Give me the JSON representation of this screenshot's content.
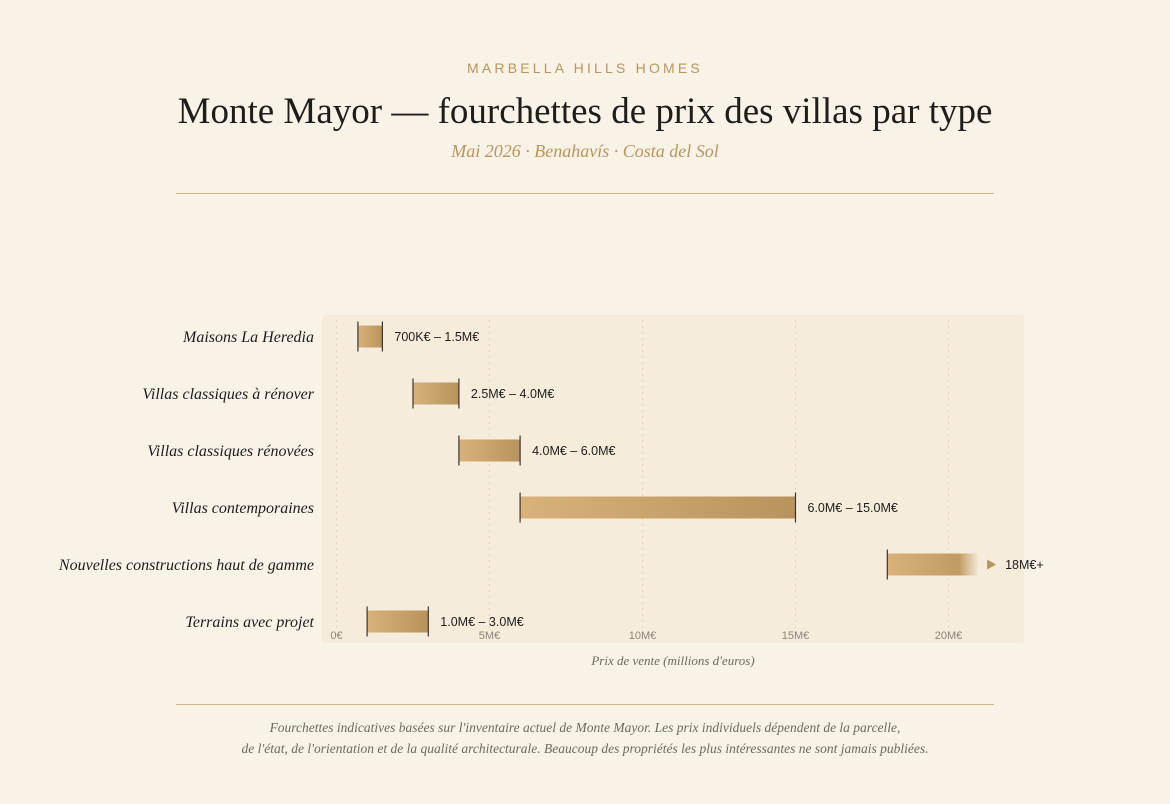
{
  "header": {
    "brand": "MARBELLA HILLS HOMES",
    "title": "Monte Mayor — fourchettes de prix des villas par type",
    "subtitle": "Mai 2026 · Benahavís · Costa del Sol"
  },
  "chart_data": {
    "type": "bar",
    "orientation": "horizontal-range",
    "categories": [
      "Maisons La Heredia",
      "Villas classiques à rénover",
      "Villas classiques rénovées",
      "Villas contemporaines",
      "Nouvelles constructions haut de gamme",
      "Terrains avec projet"
    ],
    "series": [
      {
        "ranges": [
          {
            "low": 0.7,
            "high": 1.5,
            "open_ended": false,
            "label": "700K€ – 1.5M€"
          },
          {
            "low": 2.5,
            "high": 4.0,
            "open_ended": false,
            "label": "2.5M€ – 4.0M€"
          },
          {
            "low": 4.0,
            "high": 6.0,
            "open_ended": false,
            "label": "4.0M€ – 6.0M€"
          },
          {
            "low": 6.0,
            "high": 15.0,
            "open_ended": false,
            "label": "6.0M€ – 15.0M€"
          },
          {
            "low": 18.0,
            "high": 21.0,
            "open_ended": true,
            "label": "18M€+"
          },
          {
            "low": 1.0,
            "high": 3.0,
            "open_ended": false,
            "label": "1.0M€ – 3.0M€"
          }
        ]
      }
    ],
    "xlabel": "Prix de vente (millions d'euros)",
    "ylabel": "",
    "xlim": [
      0,
      22
    ],
    "xticks": [
      0,
      5,
      10,
      15,
      20
    ],
    "xtick_labels": [
      "0€",
      "5M€",
      "10M€",
      "15M€",
      "20M€"
    ],
    "grid": true,
    "colors": {
      "bar_start": "#d8b27a",
      "bar_end": "#b8935c",
      "panel": "#f6ecdc",
      "accent": "#b8965e",
      "arrow": "#b8965e"
    }
  },
  "footnote": {
    "line1": "Fourchettes indicatives basées sur l'inventaire actuel de Monte Mayor. Les prix individuels dépendent de la parcelle,",
    "line2": "de l'état, de l'orientation et de la qualité architecturale. Beaucoup des propriétés les plus intéressantes ne sont jamais publiées."
  }
}
